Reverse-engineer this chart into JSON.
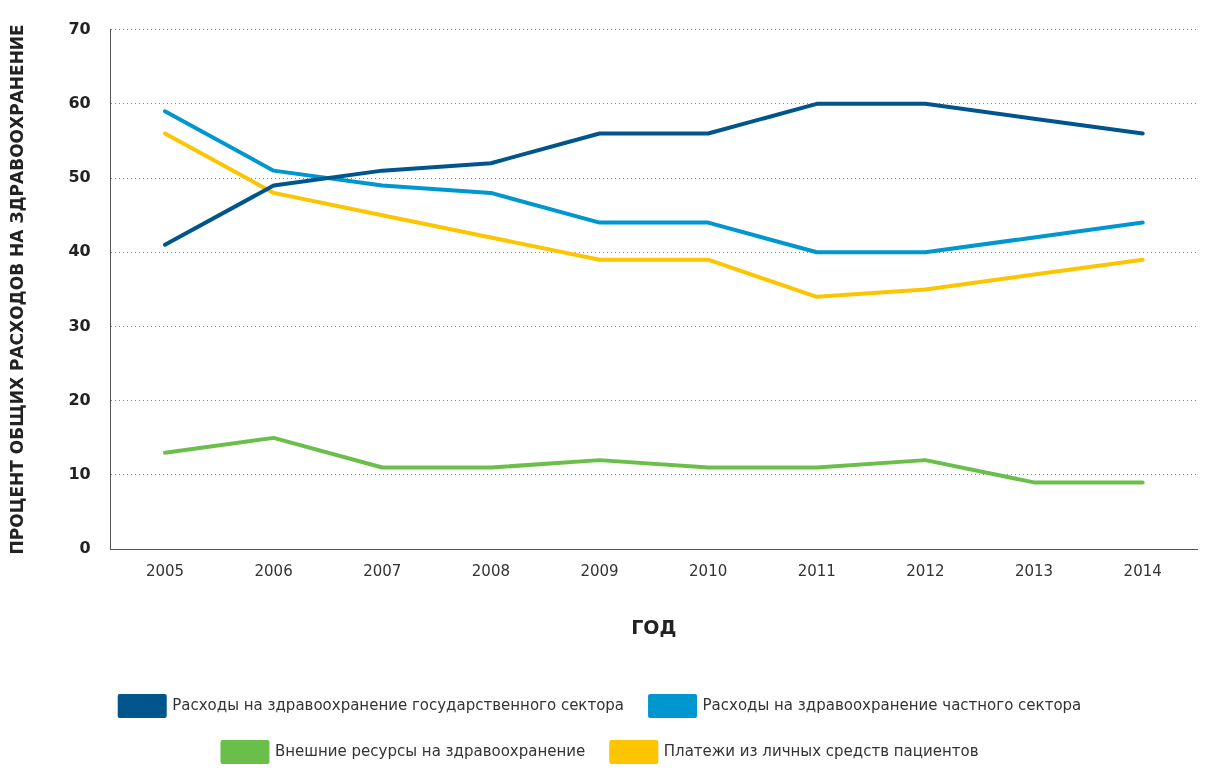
{
  "chart_data": {
    "type": "line",
    "xlabel": "ГОД",
    "ylabel": "ПРОЦЕНТ ОБЩИХ РАСХОДОВ НА ЗДРАВООХРАНЕНИЕ",
    "categories": [
      "2005",
      "2006",
      "2007",
      "2008",
      "2009",
      "2010",
      "2011",
      "2012",
      "2013",
      "2014"
    ],
    "series": [
      {
        "name": "Расходы на здравоохранение государственного сектора",
        "color": "#00558c",
        "values": [
          41,
          49,
          51,
          52,
          56,
          56,
          60,
          60,
          58,
          56
        ]
      },
      {
        "name": "Расходы на здравоохранение частного сектора",
        "color": "#0096d0",
        "values": [
          59,
          51,
          49,
          48,
          44,
          44,
          40,
          40,
          42,
          44
        ]
      },
      {
        "name": "Внешние ресурсы на здравоохранение",
        "color": "#6abf4b",
        "values": [
          13,
          15,
          11,
          11,
          12,
          11,
          11,
          12,
          9,
          9
        ]
      },
      {
        "name": "Платежи из личных средств пациентов",
        "color": "#fcc500",
        "values": [
          56,
          48,
          45,
          42,
          39,
          39,
          34,
          35,
          37,
          39
        ]
      }
    ],
    "ylim": [
      0,
      70
    ],
    "yticks": [
      0,
      10,
      20,
      30,
      40,
      50,
      60,
      70
    ],
    "grid": "y",
    "legend": "bottom",
    "marker": "none",
    "line_style": "solid"
  }
}
